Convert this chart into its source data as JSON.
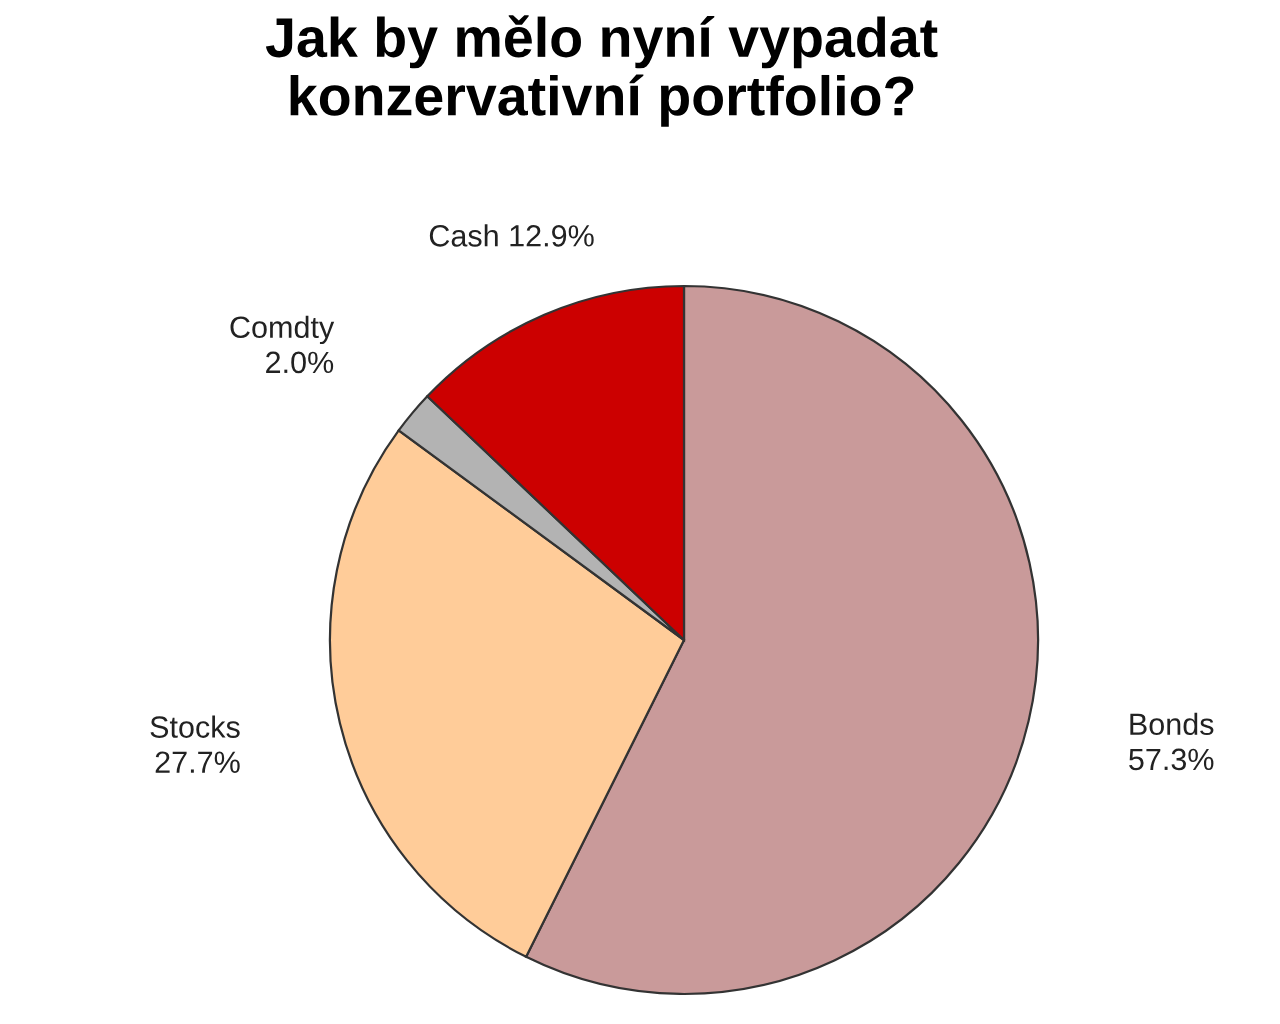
{
  "chart_data": {
    "type": "pie",
    "title": "Jak by mělo nyní vypadat\nkonzervativní portfolio?",
    "categories": [
      "Bonds",
      "Stocks",
      "Comdty",
      "Cash"
    ],
    "values": [
      57.3,
      27.7,
      2.0,
      12.9
    ],
    "colors": [
      "#c99a9a",
      "#ffcc99",
      "#b3b3b3",
      "#cc0000"
    ],
    "value_labels": [
      "57.3%",
      "27.7%",
      "2.0%",
      "12.9%"
    ]
  }
}
